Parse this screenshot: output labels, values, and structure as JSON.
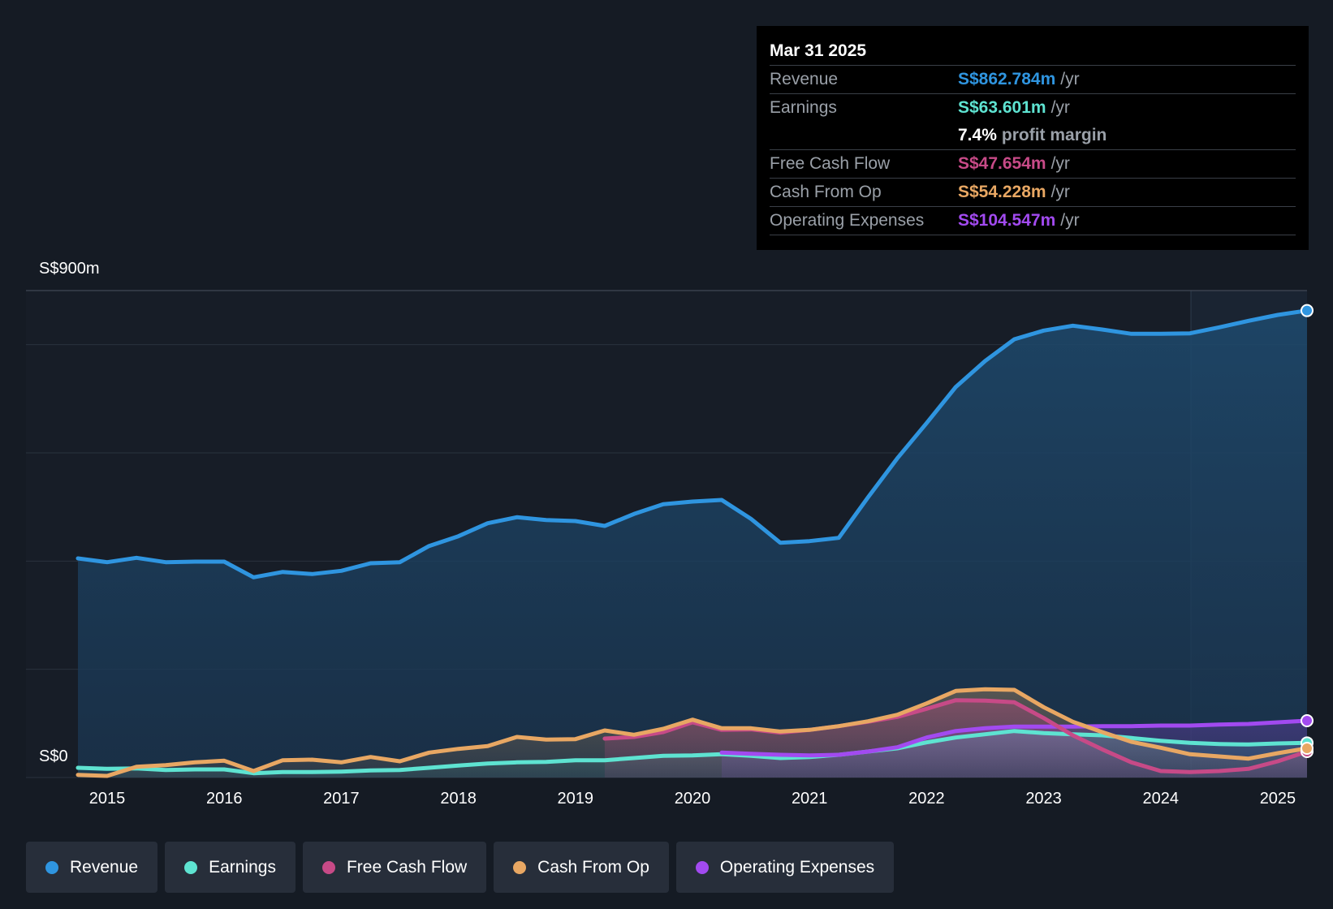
{
  "chart_data": {
    "type": "area",
    "title": "",
    "y_top_label": "S$900m",
    "y_bottom_label": "S$0",
    "ylim": [
      0,
      900
    ],
    "xlim": [
      2014.75,
      2025.25
    ],
    "x_ticks": [
      "2015",
      "2016",
      "2017",
      "2018",
      "2019",
      "2020",
      "2021",
      "2022",
      "2023",
      "2024",
      "2025"
    ],
    "series": [
      {
        "name": "Revenue",
        "color": "#2f95e0",
        "points": [
          [
            2014.75,
            405
          ],
          [
            2015.0,
            398
          ],
          [
            2015.25,
            406
          ],
          [
            2015.5,
            398
          ],
          [
            2015.75,
            399
          ],
          [
            2016.0,
            399
          ],
          [
            2016.25,
            370
          ],
          [
            2016.5,
            380
          ],
          [
            2016.75,
            376
          ],
          [
            2017.0,
            382
          ],
          [
            2017.25,
            396
          ],
          [
            2017.5,
            398
          ],
          [
            2017.75,
            428
          ],
          [
            2018.0,
            446
          ],
          [
            2018.25,
            470
          ],
          [
            2018.5,
            481
          ],
          [
            2018.75,
            476
          ],
          [
            2019.0,
            474
          ],
          [
            2019.25,
            465
          ],
          [
            2019.5,
            487
          ],
          [
            2019.75,
            505
          ],
          [
            2020.0,
            510
          ],
          [
            2020.25,
            513
          ],
          [
            2020.5,
            478
          ],
          [
            2020.75,
            434
          ],
          [
            2021.0,
            437
          ],
          [
            2021.25,
            443
          ],
          [
            2021.5,
            518
          ],
          [
            2021.75,
            590
          ],
          [
            2022.0,
            655
          ],
          [
            2022.25,
            722
          ],
          [
            2022.5,
            770
          ],
          [
            2022.75,
            810
          ],
          [
            2023.0,
            826
          ],
          [
            2023.25,
            835
          ],
          [
            2023.5,
            828
          ],
          [
            2023.75,
            820
          ],
          [
            2024.0,
            820
          ],
          [
            2024.25,
            821
          ],
          [
            2024.5,
            832
          ],
          [
            2024.75,
            844
          ],
          [
            2025.0,
            855
          ],
          [
            2025.25,
            863
          ]
        ]
      },
      {
        "name": "Earnings",
        "color": "#5ee3d1",
        "points": [
          [
            2014.75,
            18
          ],
          [
            2015.0,
            16
          ],
          [
            2015.25,
            17
          ],
          [
            2015.5,
            14
          ],
          [
            2015.75,
            15
          ],
          [
            2016.0,
            15
          ],
          [
            2016.25,
            8
          ],
          [
            2016.5,
            10
          ],
          [
            2016.75,
            10
          ],
          [
            2017.0,
            11
          ],
          [
            2017.25,
            13
          ],
          [
            2017.5,
            14
          ],
          [
            2017.75,
            18
          ],
          [
            2018.0,
            22
          ],
          [
            2018.25,
            26
          ],
          [
            2018.5,
            28
          ],
          [
            2018.75,
            29
          ],
          [
            2019.0,
            32
          ],
          [
            2019.25,
            32
          ],
          [
            2019.5,
            36
          ],
          [
            2019.75,
            40
          ],
          [
            2020.0,
            41
          ],
          [
            2020.25,
            43
          ],
          [
            2020.5,
            40
          ],
          [
            2020.75,
            36
          ],
          [
            2021.0,
            38
          ],
          [
            2021.25,
            42
          ],
          [
            2021.5,
            48
          ],
          [
            2021.75,
            54
          ],
          [
            2022.0,
            65
          ],
          [
            2022.25,
            74
          ],
          [
            2022.5,
            80
          ],
          [
            2022.75,
            86
          ],
          [
            2023.0,
            82
          ],
          [
            2023.25,
            80
          ],
          [
            2023.5,
            78
          ],
          [
            2023.75,
            73
          ],
          [
            2024.0,
            68
          ],
          [
            2024.25,
            64
          ],
          [
            2024.5,
            62
          ],
          [
            2024.75,
            61
          ],
          [
            2025.0,
            63
          ],
          [
            2025.25,
            64
          ]
        ]
      },
      {
        "name": "Free Cash Flow",
        "color": "#c74a87",
        "points": [
          [
            2019.25,
            72
          ],
          [
            2019.5,
            75
          ],
          [
            2019.75,
            84
          ],
          [
            2020.0,
            102
          ],
          [
            2020.25,
            88
          ],
          [
            2020.5,
            89
          ],
          [
            2020.75,
            83
          ],
          [
            2021.0,
            88
          ],
          [
            2021.25,
            95
          ],
          [
            2021.5,
            103
          ],
          [
            2021.75,
            112
          ],
          [
            2022.0,
            127
          ],
          [
            2022.25,
            143
          ],
          [
            2022.5,
            142
          ],
          [
            2022.75,
            139
          ],
          [
            2023.0,
            110
          ],
          [
            2023.25,
            78
          ],
          [
            2023.5,
            52
          ],
          [
            2023.75,
            28
          ],
          [
            2024.0,
            12
          ],
          [
            2024.25,
            10
          ],
          [
            2024.5,
            12
          ],
          [
            2024.75,
            16
          ],
          [
            2025.0,
            30
          ],
          [
            2025.25,
            48
          ]
        ]
      },
      {
        "name": "Cash From Op",
        "color": "#e8a763",
        "points": [
          [
            2014.75,
            5
          ],
          [
            2015.0,
            3
          ],
          [
            2015.25,
            20
          ],
          [
            2015.5,
            23
          ],
          [
            2015.75,
            28
          ],
          [
            2016.0,
            31
          ],
          [
            2016.25,
            12
          ],
          [
            2016.5,
            32
          ],
          [
            2016.75,
            33
          ],
          [
            2017.0,
            28
          ],
          [
            2017.25,
            38
          ],
          [
            2017.5,
            30
          ],
          [
            2017.75,
            46
          ],
          [
            2018.0,
            53
          ],
          [
            2018.25,
            58
          ],
          [
            2018.5,
            75
          ],
          [
            2018.75,
            70
          ],
          [
            2019.0,
            71
          ],
          [
            2019.25,
            87
          ],
          [
            2019.5,
            79
          ],
          [
            2019.75,
            90
          ],
          [
            2020.0,
            107
          ],
          [
            2020.25,
            91
          ],
          [
            2020.5,
            91
          ],
          [
            2020.75,
            85
          ],
          [
            2021.0,
            88
          ],
          [
            2021.25,
            95
          ],
          [
            2021.5,
            104
          ],
          [
            2021.75,
            116
          ],
          [
            2022.0,
            137
          ],
          [
            2022.25,
            160
          ],
          [
            2022.5,
            163
          ],
          [
            2022.75,
            162
          ],
          [
            2023.0,
            130
          ],
          [
            2023.25,
            103
          ],
          [
            2023.5,
            84
          ],
          [
            2023.75,
            66
          ],
          [
            2024.0,
            55
          ],
          [
            2024.25,
            43
          ],
          [
            2024.5,
            39
          ],
          [
            2024.75,
            35
          ],
          [
            2025.0,
            45
          ],
          [
            2025.25,
            54
          ]
        ]
      },
      {
        "name": "Operating Expenses",
        "color": "#a24af0",
        "points": [
          [
            2020.25,
            46
          ],
          [
            2020.5,
            44
          ],
          [
            2020.75,
            42
          ],
          [
            2021.0,
            41
          ],
          [
            2021.25,
            42
          ],
          [
            2021.5,
            48
          ],
          [
            2021.75,
            56
          ],
          [
            2022.0,
            74
          ],
          [
            2022.25,
            86
          ],
          [
            2022.5,
            91
          ],
          [
            2022.75,
            94
          ],
          [
            2023.0,
            94
          ],
          [
            2023.25,
            94
          ],
          [
            2023.5,
            95
          ],
          [
            2023.75,
            95
          ],
          [
            2024.0,
            96
          ],
          [
            2024.25,
            96
          ],
          [
            2024.5,
            98
          ],
          [
            2024.75,
            99
          ],
          [
            2025.0,
            102
          ],
          [
            2025.25,
            105
          ]
        ]
      }
    ]
  },
  "tooltip": {
    "date": "Mar 31 2025",
    "rows": [
      {
        "name": "Revenue",
        "value": "S$862.784m",
        "unit": "/yr",
        "color": "#2f95e0"
      },
      {
        "name": "Earnings",
        "value": "S$63.601m",
        "unit": "/yr",
        "color": "#5ee3d1"
      },
      {
        "name": "",
        "value": "7.4%",
        "unit": "profit margin",
        "color": "#ffffff"
      },
      {
        "name": "Free Cash Flow",
        "value": "S$47.654m",
        "unit": "/yr",
        "color": "#c74a87"
      },
      {
        "name": "Cash From Op",
        "value": "S$54.228m",
        "unit": "/yr",
        "color": "#e8a763"
      },
      {
        "name": "Operating Expenses",
        "value": "S$104.547m",
        "unit": "/yr",
        "color": "#a24af0"
      }
    ]
  },
  "legend": [
    {
      "label": "Revenue",
      "color": "#2f95e0"
    },
    {
      "label": "Earnings",
      "color": "#5ee3d1"
    },
    {
      "label": "Free Cash Flow",
      "color": "#c74a87"
    },
    {
      "label": "Cash From Op",
      "color": "#e8a763"
    },
    {
      "label": "Operating Expenses",
      "color": "#a24af0"
    }
  ]
}
